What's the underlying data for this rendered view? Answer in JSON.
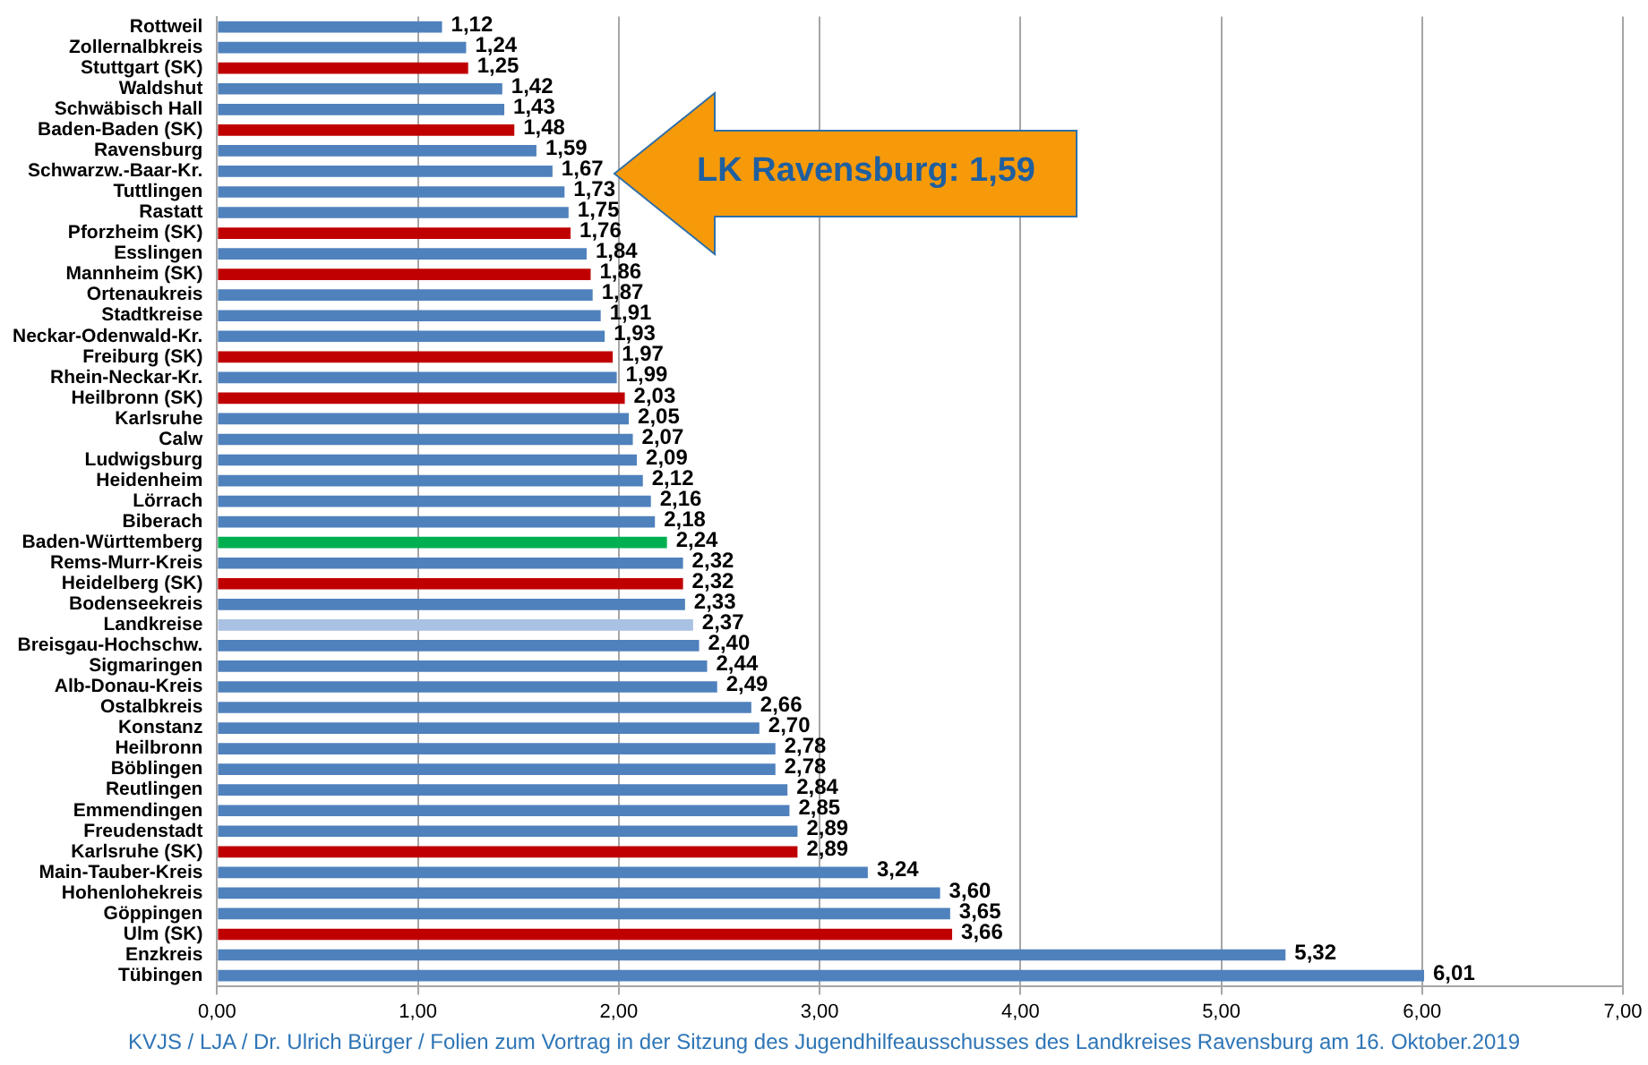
{
  "chart_data": {
    "type": "bar",
    "orientation": "horizontal",
    "categories": [
      "Rottweil",
      "Zollernalbkreis",
      "Stuttgart (SK)",
      "Waldshut",
      "Schwäbisch Hall",
      "Baden-Baden (SK)",
      "Ravensburg",
      "Schwarzw.-Baar-Kr.",
      "Tuttlingen",
      "Rastatt",
      "Pforzheim (SK)",
      "Esslingen",
      "Mannheim (SK)",
      "Ortenaukreis",
      "Stadtkreise",
      "Neckar-Odenwald-Kr.",
      "Freiburg (SK)",
      "Rhein-Neckar-Kr.",
      "Heilbronn (SK)",
      "Karlsruhe",
      "Calw",
      "Ludwigsburg",
      "Heidenheim",
      "Lörrach",
      "Biberach",
      "Baden-Württemberg",
      "Rems-Murr-Kreis",
      "Heidelberg (SK)",
      "Bodenseekreis",
      "Landkreise",
      "Breisgau-Hochschw.",
      "Sigmaringen",
      "Alb-Donau-Kreis",
      "Ostalbkreis",
      "Konstanz",
      "Heilbronn",
      "Böblingen",
      "Reutlingen",
      "Emmendingen",
      "Freudenstadt",
      "Karlsruhe (SK)",
      "Main-Tauber-Kreis",
      "Hohenlohekreis",
      "Göppingen",
      "Ulm (SK)",
      "Enzkreis",
      "Tübingen"
    ],
    "values": [
      1.12,
      1.24,
      1.25,
      1.42,
      1.43,
      1.48,
      1.59,
      1.67,
      1.73,
      1.75,
      1.76,
      1.84,
      1.86,
      1.87,
      1.91,
      1.93,
      1.97,
      1.99,
      2.03,
      2.05,
      2.07,
      2.09,
      2.12,
      2.16,
      2.18,
      2.24,
      2.32,
      2.32,
      2.33,
      2.37,
      2.4,
      2.44,
      2.49,
      2.66,
      2.7,
      2.78,
      2.78,
      2.84,
      2.85,
      2.89,
      2.89,
      3.24,
      3.6,
      3.65,
      3.66,
      5.32,
      6.01
    ],
    "value_labels": [
      "1,12",
      "1,24",
      "1,25",
      "1,42",
      "1,43",
      "1,48",
      "1,59",
      "1,67",
      "1,73",
      "1,75",
      "1,76",
      "1,84",
      "1,86",
      "1,87",
      "1,91",
      "1,93",
      "1,97",
      "1,99",
      "2,03",
      "2,05",
      "2,07",
      "2,09",
      "2,12",
      "2,16",
      "2,18",
      "2,24",
      "2,32",
      "2,32",
      "2,33",
      "2,37",
      "2,40",
      "2,44",
      "2,49",
      "2,66",
      "2,70",
      "2,78",
      "2,78",
      "2,84",
      "2,85",
      "2,89",
      "2,89",
      "3,24",
      "3,60",
      "3,65",
      "3,66",
      "5,32",
      "6,01"
    ],
    "colors": [
      "#4f81bd",
      "#4f81bd",
      "#c00000",
      "#4f81bd",
      "#4f81bd",
      "#c00000",
      "#4f81bd",
      "#4f81bd",
      "#4f81bd",
      "#4f81bd",
      "#c00000",
      "#4f81bd",
      "#c00000",
      "#4f81bd",
      "#4f81bd",
      "#4f81bd",
      "#c00000",
      "#4f81bd",
      "#c00000",
      "#4f81bd",
      "#4f81bd",
      "#4f81bd",
      "#4f81bd",
      "#4f81bd",
      "#4f81bd",
      "#00b050",
      "#4f81bd",
      "#c00000",
      "#4f81bd",
      "#a9c1e2",
      "#4f81bd",
      "#4f81bd",
      "#4f81bd",
      "#4f81bd",
      "#4f81bd",
      "#4f81bd",
      "#4f81bd",
      "#4f81bd",
      "#4f81bd",
      "#4f81bd",
      "#c00000",
      "#4f81bd",
      "#4f81bd",
      "#4f81bd",
      "#c00000",
      "#4f81bd",
      "#4f81bd"
    ],
    "xlim": [
      0,
      7
    ],
    "xticks": [
      {
        "value": 0,
        "label": "0,00"
      },
      {
        "value": 1,
        "label": "1,00"
      },
      {
        "value": 2,
        "label": "2,00"
      },
      {
        "value": 3,
        "label": "3,00"
      },
      {
        "value": 4,
        "label": "4,00"
      },
      {
        "value": 5,
        "label": "5,00"
      },
      {
        "value": 6,
        "label": "6,00"
      },
      {
        "value": 7,
        "label": "7,00"
      }
    ],
    "grid": "x",
    "legend": false,
    "annotations": [
      "LK Ravensburg: 1,59",
      "KVJS / LJA / Dr. Ulrich Bürger / Folien zum Vortrag in der Sitzung des Jugendhilfeausschusses des Landkreises Ravensburg am 16. Oktober.2019"
    ]
  }
}
